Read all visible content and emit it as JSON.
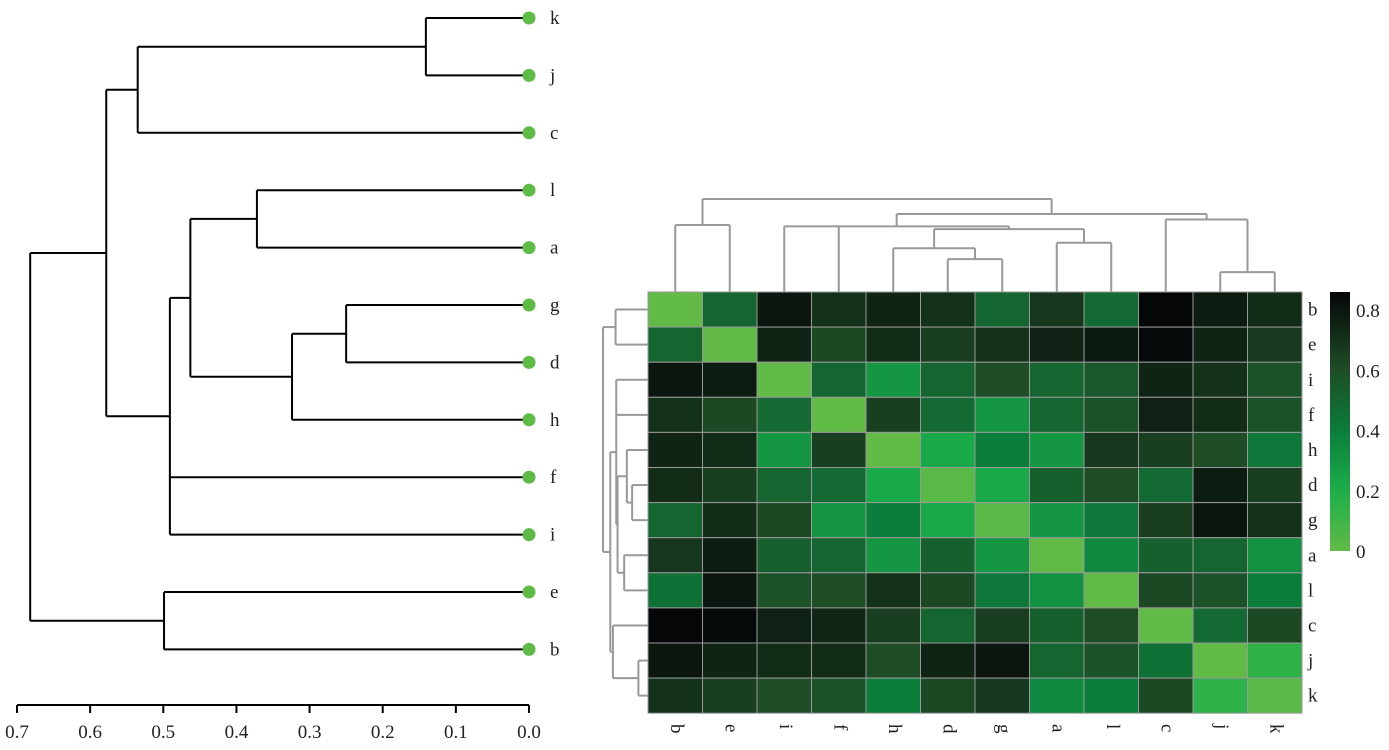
{
  "chart_data": [
    {
      "type": "dendrogram",
      "orientation": "left",
      "leaf_color": "#5dbb46",
      "axis": {
        "ticks": [
          0.7,
          0.6,
          0.5,
          0.4,
          0.3,
          0.2,
          0.1,
          0.0
        ],
        "tick_labels": [
          "0.7",
          "0.6",
          "0.5",
          "0.4",
          "0.3",
          "0.2",
          "0.1",
          "0.0"
        ],
        "range": [
          0.7,
          0.0
        ]
      },
      "leaves": [
        "k",
        "j",
        "c",
        "l",
        "a",
        "g",
        "d",
        "h",
        "f",
        "i",
        "e",
        "b"
      ],
      "tree": {
        "h": 0.682,
        "children": [
          {
            "h": 0.578,
            "children": [
              {
                "h": 0.535,
                "children": [
                  {
                    "h": 0.141,
                    "children": [
                      {
                        "label": "k"
                      },
                      {
                        "label": "j"
                      }
                    ]
                  },
                  {
                    "label": "c"
                  }
                ]
              },
              {
                "h": 0.491,
                "children": [
                  {
                    "h": 0.463,
                    "children": [
                      {
                        "h": 0.372,
                        "children": [
                          {
                            "label": "l"
                          },
                          {
                            "label": "a"
                          }
                        ]
                      },
                      {
                        "h": 0.324,
                        "children": [
                          {
                            "h": 0.25,
                            "children": [
                              {
                                "label": "g"
                              },
                              {
                                "label": "d"
                              }
                            ]
                          },
                          {
                            "label": "h"
                          }
                        ]
                      }
                    ]
                  },
                  {
                    "label": "f"
                  },
                  {
                    "label": "i"
                  }
                ]
              }
            ]
          },
          {
            "h": 0.499,
            "children": [
              {
                "label": "e"
              },
              {
                "label": "b"
              }
            ]
          }
        ]
      }
    },
    {
      "type": "heatmap",
      "labels": [
        "b",
        "e",
        "i",
        "f",
        "h",
        "d",
        "g",
        "a",
        "l",
        "c",
        "j",
        "k"
      ],
      "colorbar": {
        "min": 0,
        "max": 0.86,
        "ticks": [
          0,
          0.2,
          0.4,
          0.6,
          0.8
        ],
        "tick_labels": [
          "0",
          "0.2",
          "0.4",
          "0.6",
          "0.8"
        ]
      },
      "colormap": [
        [
          "0",
          "#62bb47"
        ],
        [
          "0.2",
          "#1cae4a"
        ],
        [
          "0.4",
          "#0b7d3b"
        ],
        [
          "0.6",
          "#1e4d26"
        ],
        [
          "0.86",
          "#050608"
        ]
      ],
      "values": [
        [
          0.0,
          0.5,
          0.8,
          0.7,
          0.75,
          0.7,
          0.5,
          0.68,
          0.48,
          0.86,
          0.78,
          0.72
        ],
        [
          0.5,
          0.0,
          0.75,
          0.62,
          0.72,
          0.65,
          0.7,
          0.76,
          0.79,
          0.85,
          0.75,
          0.67
        ],
        [
          0.8,
          0.78,
          0.0,
          0.5,
          0.3,
          0.5,
          0.6,
          0.5,
          0.55,
          0.75,
          0.7,
          0.58
        ],
        [
          0.7,
          0.62,
          0.48,
          0.0,
          0.65,
          0.48,
          0.3,
          0.5,
          0.58,
          0.76,
          0.72,
          0.58
        ],
        [
          0.75,
          0.72,
          0.3,
          0.65,
          0.0,
          0.22,
          0.4,
          0.3,
          0.68,
          0.65,
          0.6,
          0.42
        ],
        [
          0.72,
          0.65,
          0.5,
          0.48,
          0.22,
          0.03,
          0.22,
          0.52,
          0.6,
          0.48,
          0.78,
          0.65
        ],
        [
          0.5,
          0.72,
          0.62,
          0.3,
          0.4,
          0.22,
          0.03,
          0.3,
          0.42,
          0.65,
          0.8,
          0.7
        ],
        [
          0.68,
          0.78,
          0.52,
          0.5,
          0.3,
          0.52,
          0.3,
          0.0,
          0.35,
          0.52,
          0.5,
          0.32
        ],
        [
          0.45,
          0.8,
          0.58,
          0.6,
          0.7,
          0.62,
          0.42,
          0.32,
          0.0,
          0.62,
          0.58,
          0.4
        ],
        [
          0.86,
          0.85,
          0.76,
          0.74,
          0.65,
          0.5,
          0.65,
          0.52,
          0.6,
          0.0,
          0.48,
          0.62
        ],
        [
          0.8,
          0.75,
          0.72,
          0.72,
          0.6,
          0.75,
          0.8,
          0.5,
          0.58,
          0.45,
          0.0,
          0.15
        ],
        [
          0.7,
          0.65,
          0.6,
          0.58,
          0.4,
          0.62,
          0.68,
          0.35,
          0.4,
          0.62,
          0.15,
          0.03
        ]
      ],
      "dendrogram_color": "#999999",
      "tree": {
        "h": 0.68,
        "children": [
          {
            "h": 0.49,
            "children": [
              {
                "label": "b"
              },
              {
                "label": "e"
              }
            ]
          },
          {
            "h": 0.57,
            "children": [
              {
                "h": 0.48,
                "children": [
                  {
                    "label": "i"
                  },
                  {
                    "label": "f"
                  },
                  {
                    "h": 0.46,
                    "children": [
                      {
                        "h": 0.32,
                        "children": [
                          {
                            "label": "h"
                          },
                          {
                            "h": 0.24,
                            "children": [
                              {
                                "label": "d"
                              },
                              {
                                "label": "g"
                              }
                            ]
                          }
                        ]
                      },
                      {
                        "h": 0.36,
                        "children": [
                          {
                            "label": "a"
                          },
                          {
                            "label": "l"
                          }
                        ]
                      }
                    ]
                  }
                ]
              },
              {
                "h": 0.53,
                "children": [
                  {
                    "label": "c"
                  },
                  {
                    "h": 0.145,
                    "children": [
                      {
                        "label": "j"
                      },
                      {
                        "label": "k"
                      }
                    ]
                  }
                ]
              }
            ]
          }
        ]
      }
    }
  ]
}
